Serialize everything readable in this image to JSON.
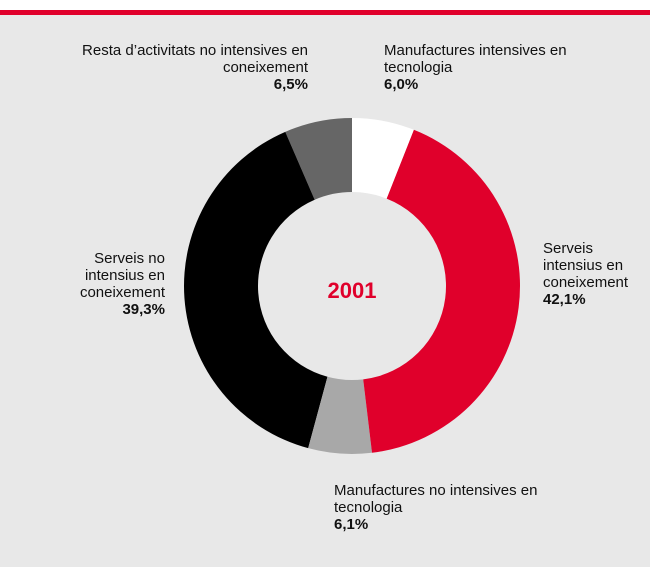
{
  "chart_data": {
    "type": "donut",
    "title": "2001",
    "categories": [
      "Manufactures intensives en tecnologia",
      "Serveis intensius en coneixement",
      "Manufactures no intensives en tecnologia",
      "Serveis no intensius en coneixement",
      "Resta d’activitats no intensives en coneixement"
    ],
    "values": [
      6.0,
      42.1,
      6.1,
      39.3,
      6.5
    ],
    "value_labels": [
      "6,0%",
      "42,1%",
      "6,1%",
      "39,3%",
      "6,5%"
    ],
    "colors": [
      "#ffffff",
      "#e0002b",
      "#a8a8a8",
      "#000000",
      "#666666"
    ]
  }
}
